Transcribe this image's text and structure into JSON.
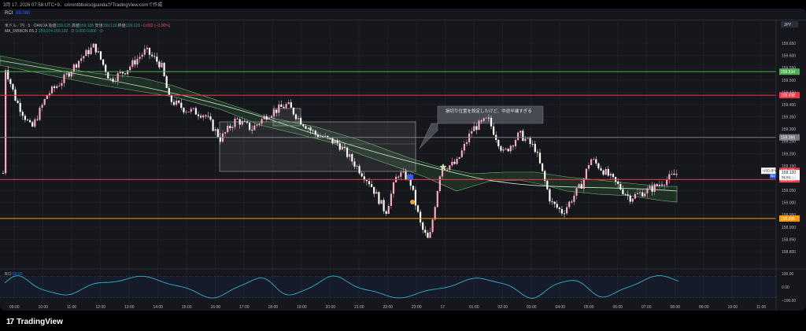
{
  "header": {
    "caption": "3月 17, 2026 07:58 UTC+9、crimintbbsksojpandaがTradingView.comで作成"
  },
  "indicator_top": {
    "name": "RCI",
    "value": "89.080"
  },
  "symbol_legend": {
    "symbol": "米ドル／円 · 5 · OANDA",
    "open_label": "始値",
    "open": "159.125",
    "high_label": "高値",
    "high": "159.135",
    "low_label": "安値",
    "low": "159.119",
    "close_label": "終値",
    "close": "159.120",
    "change": "−0.002 (−0.00%)"
  },
  "ma_legend": {
    "name": "MA_RIBBON R5.2",
    "v1": "159.074",
    "v2": "159.103",
    "v3": "0.000",
    "v4": "0.000"
  },
  "currency": "JPY",
  "annotation": "損切り位置を設定したけど、中途半端すぎる",
  "price_axis": {
    "ticks": [
      "159.650",
      "159.600",
      "159.550",
      "159.500",
      "159.450",
      "159.400",
      "159.350",
      "159.300",
      "159.250",
      "159.200",
      "159.150",
      "159.100",
      "159.050",
      "159.000",
      "158.950",
      "158.900",
      "158.850",
      "158.800"
    ],
    "ask_label": "Ask",
    "ask": "159.131",
    "symbol_tag": "USDJPY",
    "last": "159.120",
    "countdown": "01:51",
    "bid_label": "Bid",
    "bid": "159.109"
  },
  "levels": [
    {
      "price": 159.534,
      "label": "159.534",
      "color": "#4caf50"
    },
    {
      "price": 159.438,
      "label": "159.438",
      "color": "#f23645"
    },
    {
      "price": 159.266,
      "label": "159.266",
      "color": "#787b86"
    },
    {
      "price": 159.094,
      "label": "159.094",
      "color": "#f23645"
    },
    {
      "price": 158.935,
      "label": "158.935",
      "color": "#ff9800"
    }
  ],
  "time_axis": [
    "09:00",
    "10:00",
    "11:00",
    "12:00",
    "13:00",
    "14:00",
    "15:00",
    "16:00",
    "17:00",
    "18:00",
    "19:00",
    "20:00",
    "21:00",
    "22:00",
    "23:00",
    "17",
    "01:00",
    "02:00",
    "03:00",
    "04:00",
    "05:00",
    "06:00",
    "07:00",
    "08:00",
    "09:00",
    "10:00",
    "11:00"
  ],
  "rci_panel": {
    "name": "RCI",
    "value": "58.83",
    "ticks": [
      "100.00",
      "0.00",
      "−100.00"
    ]
  },
  "colors": {
    "up": "#26a69a",
    "down": "#ef5350",
    "candle_up": "#f7a9c4",
    "candle_down": "#ffffff",
    "rci_line": "#2ec4d6",
    "ma": "#a5d6a7"
  },
  "brand": {
    "logo_mark": "17",
    "name": "TradingView"
  }
}
